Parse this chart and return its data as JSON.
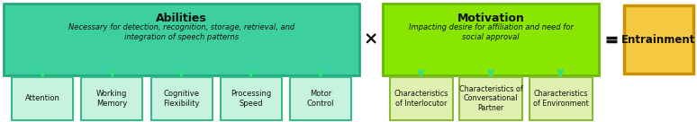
{
  "abilities_title": "Abilities",
  "abilities_subtitle": "Necessary for detection, recognition, storage, retrieval, and\nintegration of speech patterns",
  "abilities_bg": "#3ecfa0",
  "abilities_border": "#22aa77",
  "motivation_title": "Motivation",
  "motivation_subtitle": "Impacting desire for affiliation and need for\nsocial approval",
  "motivation_bg": "#88e600",
  "motivation_border": "#66bb00",
  "entrainment_text": "Entrainment",
  "entrainment_bg": "#f5c842",
  "entrainment_border": "#c89400",
  "abilities_boxes": [
    "Attention",
    "Working\nMemory",
    "Cognitive\nFlexibility",
    "Processing\nSpeed",
    "Motor\nControl"
  ],
  "motivation_boxes": [
    "Characteristics\nof Interlocutor",
    "Characteristics of\nConversational\nPartner",
    "Characteristics\nof Environment"
  ],
  "sub_box_bg_abilities": "#c8f2e0",
  "sub_box_bg_motivation": "#dff0b0",
  "sub_border_abilities": "#33bb88",
  "sub_border_motivation": "#88bb33",
  "arrow_color": "#33dd88",
  "text_color": "#111111",
  "times_color": "#111111",
  "equals_color": "#111111"
}
